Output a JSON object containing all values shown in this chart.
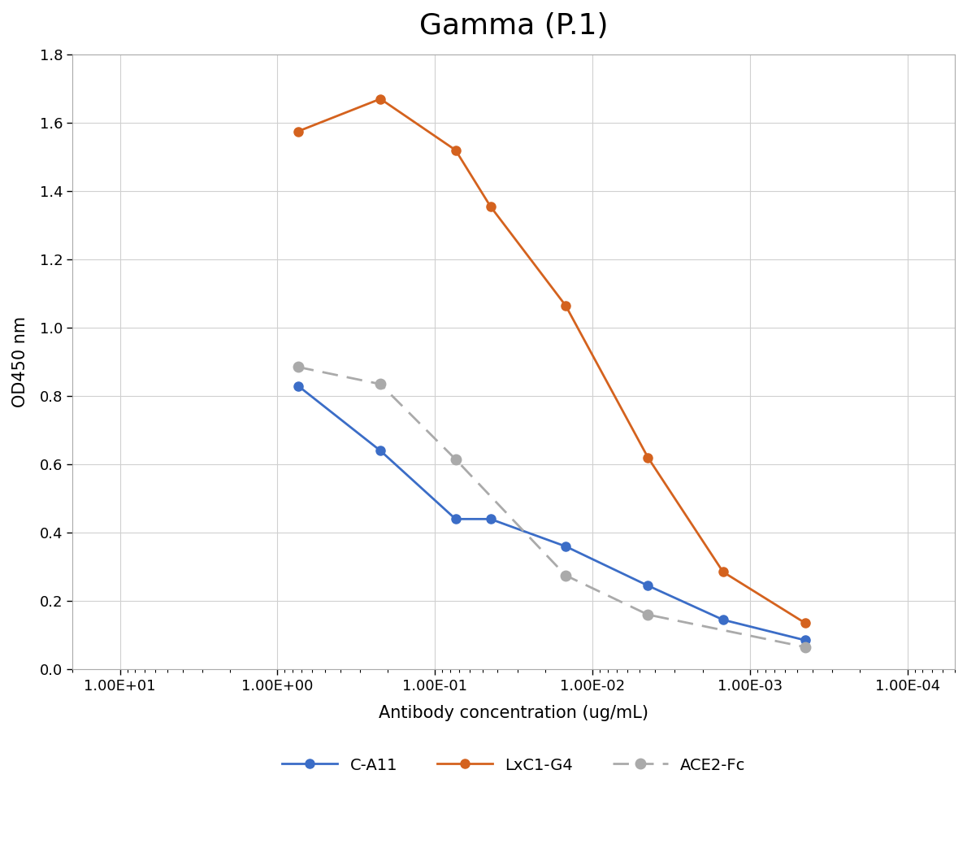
{
  "title": "Gamma (P.1)",
  "xlabel": "Antibody concentration (ug/mL)",
  "ylabel": "OD450 nm",
  "xlim_left": 20.0,
  "xlim_right": 5e-05,
  "ylim": [
    0,
    1.8
  ],
  "yticks": [
    0,
    0.2,
    0.4,
    0.6,
    0.8,
    1.0,
    1.2,
    1.4,
    1.6,
    1.8
  ],
  "xtick_vals": [
    10.0,
    1.0,
    0.1,
    0.01,
    0.001,
    0.0001
  ],
  "xtick_labels": [
    "1.00E+01",
    "1.00E+00",
    "1.00E-01",
    "1.00E-02",
    "1.00E-03",
    "1.00E-04"
  ],
  "series": [
    {
      "label": "C-A11",
      "color": "#3b6dc7",
      "linestyle": "-",
      "marker": "o",
      "markersize": 8,
      "linewidth": 2.0,
      "dashes": [],
      "x": [
        0.74,
        0.222,
        0.074,
        0.0444,
        0.0148,
        0.00444,
        0.00148,
        0.000444
      ],
      "y": [
        0.83,
        0.64,
        0.44,
        0.44,
        0.36,
        0.245,
        0.145,
        0.085
      ]
    },
    {
      "label": "LxC1-G4",
      "color": "#d4621e",
      "linestyle": "-",
      "marker": "o",
      "markersize": 8,
      "linewidth": 2.0,
      "dashes": [],
      "x": [
        0.74,
        0.222,
        0.074,
        0.0444,
        0.0148,
        0.00444,
        0.00148,
        0.000444
      ],
      "y": [
        1.575,
        1.67,
        1.52,
        1.355,
        1.065,
        0.62,
        0.285,
        0.135
      ]
    },
    {
      "label": "ACE2-Fc",
      "color": "#aaaaaa",
      "linestyle": "--",
      "marker": "o",
      "markersize": 9,
      "linewidth": 2.0,
      "dashes": [
        7,
        4
      ],
      "x": [
        0.74,
        0.222,
        0.074,
        0.0148,
        0.00444,
        0.000444
      ],
      "y": [
        0.885,
        0.835,
        0.615,
        0.275,
        0.16,
        0.065
      ]
    }
  ],
  "background_color": "#ffffff",
  "grid_color": "#d0d0d0",
  "title_fontsize": 26,
  "label_fontsize": 15,
  "tick_fontsize": 13,
  "legend_fontsize": 14
}
